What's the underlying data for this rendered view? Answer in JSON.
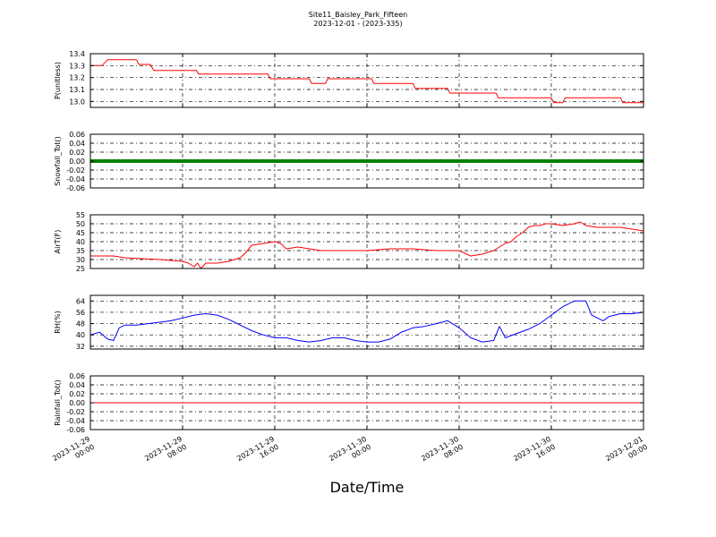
{
  "figure": {
    "title": "Site11_Baisley_Park_Fifteen",
    "subtitle": "2023-12-01 - (2023-335)",
    "xlabel": "Date/Time"
  },
  "chart_data": [
    {
      "type": "line",
      "ylabel": "P(unitless)",
      "color": "#ff0000",
      "x_range_hours": [
        0,
        48
      ],
      "ylim": [
        12.95,
        13.4
      ],
      "yticks": [
        "13.0",
        "13.1",
        "13.2",
        "13.3",
        "13.4"
      ],
      "ytick_values": [
        13.0,
        13.1,
        13.2,
        13.3,
        13.4
      ],
      "grid": true,
      "series": [
        {
          "x": [
            0,
            1.0,
            1.5,
            4.0,
            4.2,
            5.2,
            5.5,
            9.2,
            9.4,
            15.4,
            15.6,
            19.0,
            19.2,
            20.4,
            20.6,
            24.4,
            24.6,
            28.0,
            28.2,
            31.0,
            31.2,
            35.2,
            35.4,
            40.0,
            40.2,
            41.0,
            41.2,
            46.0,
            46.2,
            48.0
          ],
          "y": [
            13.3,
            13.3,
            13.35,
            13.35,
            13.31,
            13.31,
            13.26,
            13.26,
            13.23,
            13.23,
            13.19,
            13.19,
            13.15,
            13.15,
            13.19,
            13.19,
            13.15,
            13.15,
            13.11,
            13.11,
            13.07,
            13.07,
            13.03,
            13.03,
            12.99,
            12.99,
            13.03,
            13.03,
            12.99,
            12.99
          ]
        }
      ]
    },
    {
      "type": "line",
      "ylabel": "Snowfall_Tot()",
      "color": "#008000",
      "x_range_hours": [
        0,
        48
      ],
      "ylim": [
        -0.06,
        0.06
      ],
      "yticks": [
        "-0.06",
        "-0.04",
        "-0.02",
        "0.00",
        "0.02",
        "0.04",
        "0.06"
      ],
      "ytick_values": [
        -0.06,
        -0.04,
        -0.02,
        0.0,
        0.02,
        0.04,
        0.06
      ],
      "grid": true,
      "series": [
        {
          "x": [
            0,
            48
          ],
          "y": [
            0,
            0
          ]
        }
      ]
    },
    {
      "type": "line",
      "ylabel": "AirT(F)",
      "color": "#ff0000",
      "x_range_hours": [
        0,
        48
      ],
      "ylim": [
        25,
        55
      ],
      "yticks": [
        "25",
        "30",
        "35",
        "40",
        "45",
        "50",
        "55"
      ],
      "ytick_values": [
        25,
        30,
        35,
        40,
        45,
        50,
        55
      ],
      "grid": true,
      "series": [
        {
          "x": [
            0,
            2,
            3,
            6,
            8,
            8.5,
            9,
            9.3,
            9.6,
            10,
            11,
            12,
            13,
            13.5,
            14,
            15,
            16,
            16.5,
            17,
            18,
            20,
            24,
            26,
            28,
            30,
            31,
            32,
            33,
            34,
            35,
            36,
            36.5,
            37,
            37.5,
            38,
            38.5,
            39,
            39.5,
            40,
            41,
            42,
            42.5,
            43,
            44,
            46,
            48
          ],
          "y": [
            32,
            32,
            31,
            30,
            29,
            28,
            26,
            28,
            25,
            28,
            28,
            29,
            31,
            34,
            38,
            39,
            40,
            39,
            36,
            37,
            35,
            35,
            36,
            36,
            35,
            35,
            35,
            32,
            33,
            35,
            39,
            40,
            43,
            45,
            48,
            49,
            49,
            50,
            50,
            49,
            50,
            51,
            49,
            48,
            48,
            46
          ]
        }
      ]
    },
    {
      "type": "line",
      "ylabel": "RH(%)",
      "color": "#0000ff",
      "x_range_hours": [
        0,
        48
      ],
      "ylim": [
        30,
        68
      ],
      "yticks": [
        "32",
        "40",
        "48",
        "56",
        "64"
      ],
      "ytick_values": [
        32,
        40,
        48,
        56,
        64
      ],
      "grid": true,
      "series": [
        {
          "x": [
            0,
            0.8,
            1.5,
            2,
            2.5,
            3,
            4,
            5,
            6,
            7,
            8,
            9,
            10,
            11,
            12,
            13,
            14,
            15,
            16,
            17,
            18,
            19,
            20,
            21,
            22,
            23,
            24,
            25,
            26,
            27,
            28,
            29,
            30,
            31,
            32,
            33,
            34,
            35,
            35.5,
            36,
            37,
            38,
            39,
            40,
            41,
            42,
            43,
            43.5,
            44,
            44.5,
            45,
            45.5,
            46,
            47,
            48
          ],
          "y": [
            40,
            42,
            37,
            36,
            45,
            47,
            47,
            48,
            49,
            50,
            52,
            54,
            55,
            54,
            51,
            47,
            43,
            40,
            38,
            38,
            36,
            35,
            36,
            38,
            38,
            36,
            35,
            35,
            37,
            42,
            45,
            46,
            48,
            50,
            45,
            38,
            35,
            36,
            46,
            38,
            41,
            44,
            48,
            54,
            60,
            64,
            64,
            54,
            52,
            50,
            53,
            54,
            55,
            55,
            56
          ]
        }
      ]
    },
    {
      "type": "line",
      "ylabel": "Rainfall_Tot()",
      "color": "#ff0000",
      "x_range_hours": [
        0,
        48
      ],
      "ylim": [
        -0.06,
        0.06
      ],
      "yticks": [
        "-0.06",
        "-0.04",
        "-0.02",
        "0.00",
        "0.02",
        "0.04",
        "0.06"
      ],
      "ytick_values": [
        -0.06,
        -0.04,
        -0.02,
        0.0,
        0.02,
        0.04,
        0.06
      ],
      "grid": true,
      "series": [
        {
          "x": [
            0,
            48
          ],
          "y": [
            0,
            0
          ]
        }
      ]
    }
  ],
  "xticks": [
    {
      "hour": 0,
      "line1": "2023-11-29",
      "line2": "00:00"
    },
    {
      "hour": 8,
      "line1": "2023-11-29",
      "line2": "08:00"
    },
    {
      "hour": 16,
      "line1": "2023-11-29",
      "line2": "16:00"
    },
    {
      "hour": 24,
      "line1": "2023-11-30",
      "line2": "00:00"
    },
    {
      "hour": 32,
      "line1": "2023-11-30",
      "line2": "08:00"
    },
    {
      "hour": 40,
      "line1": "2023-11-30",
      "line2": "16:00"
    },
    {
      "hour": 48,
      "line1": "2023-12-01",
      "line2": "00:00"
    }
  ]
}
